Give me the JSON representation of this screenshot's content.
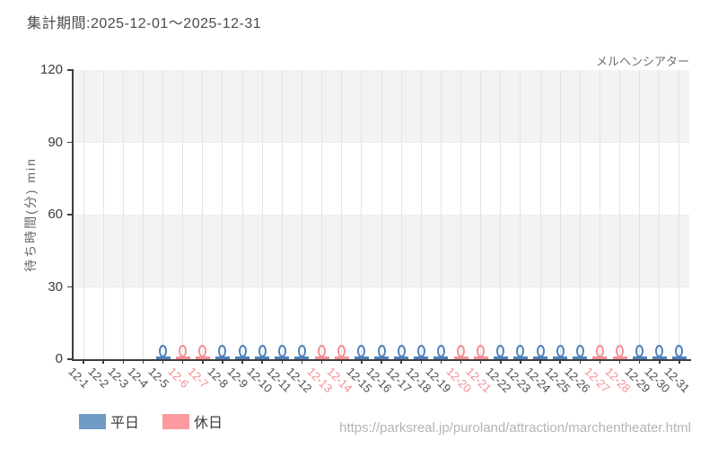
{
  "header": {
    "title": "集計期間:2025-12-01〜2025-12-31",
    "attraction": "メルヘンシアター"
  },
  "footer": {
    "url": "https://parksreal.jp/puroland/attraction/marchentheater.html"
  },
  "legend": [
    {
      "label": "平日",
      "color": "#6f9bc4"
    },
    {
      "label": "休日",
      "color": "#fb9ba0"
    }
  ],
  "colors": {
    "band": "#f3f3f3",
    "grid_vertical": "#e4e4e4",
    "grid_horizontal": "#ececec",
    "axis": "#3d3d3d",
    "y_tick_label": "#3c3c3c",
    "x_label_weekday": "#4c4c4c",
    "x_label_holiday": "#f58e93",
    "marker_weekday": "#4d80bc",
    "marker_holiday": "#f58e93"
  },
  "chart_data": {
    "type": "candlestick",
    "title": "集計期間:2025-12-01〜2025-12-31",
    "attraction": "メルヘンシアター",
    "ylabel": "待ち時間(分) min",
    "ylim": [
      0,
      120
    ],
    "yticks": [
      0,
      30,
      60,
      90,
      120
    ],
    "grid": true,
    "legend_position": "bottom-left",
    "categories": [
      "12-1",
      "12-2",
      "12-3",
      "12-4",
      "12-5",
      "12-6",
      "12-7",
      "12-8",
      "12-9",
      "12-10",
      "12-11",
      "12-12",
      "12-13",
      "12-14",
      "12-15",
      "12-16",
      "12-17",
      "12-18",
      "12-19",
      "12-20",
      "12-21",
      "12-22",
      "12-23",
      "12-24",
      "12-25",
      "12-26",
      "12-27",
      "12-28",
      "12-29",
      "12-30",
      "12-31"
    ],
    "day_types": [
      "weekday",
      "weekday",
      "weekday",
      "weekday",
      "weekday",
      "holiday",
      "holiday",
      "weekday",
      "weekday",
      "weekday",
      "weekday",
      "weekday",
      "holiday",
      "holiday",
      "weekday",
      "weekday",
      "weekday",
      "weekday",
      "weekday",
      "holiday",
      "holiday",
      "weekday",
      "weekday",
      "weekday",
      "weekday",
      "weekday",
      "holiday",
      "holiday",
      "weekday",
      "weekday",
      "weekday"
    ],
    "values": [
      null,
      null,
      null,
      null,
      0,
      0,
      0,
      0,
      0,
      0,
      0,
      0,
      0,
      0,
      0,
      0,
      0,
      0,
      0,
      0,
      0,
      0,
      0,
      0,
      0,
      0,
      0,
      0,
      0,
      0,
      0
    ],
    "series": [
      {
        "name": "平日",
        "color": "#4d80bc"
      },
      {
        "name": "休日",
        "color": "#f58e93"
      }
    ]
  }
}
